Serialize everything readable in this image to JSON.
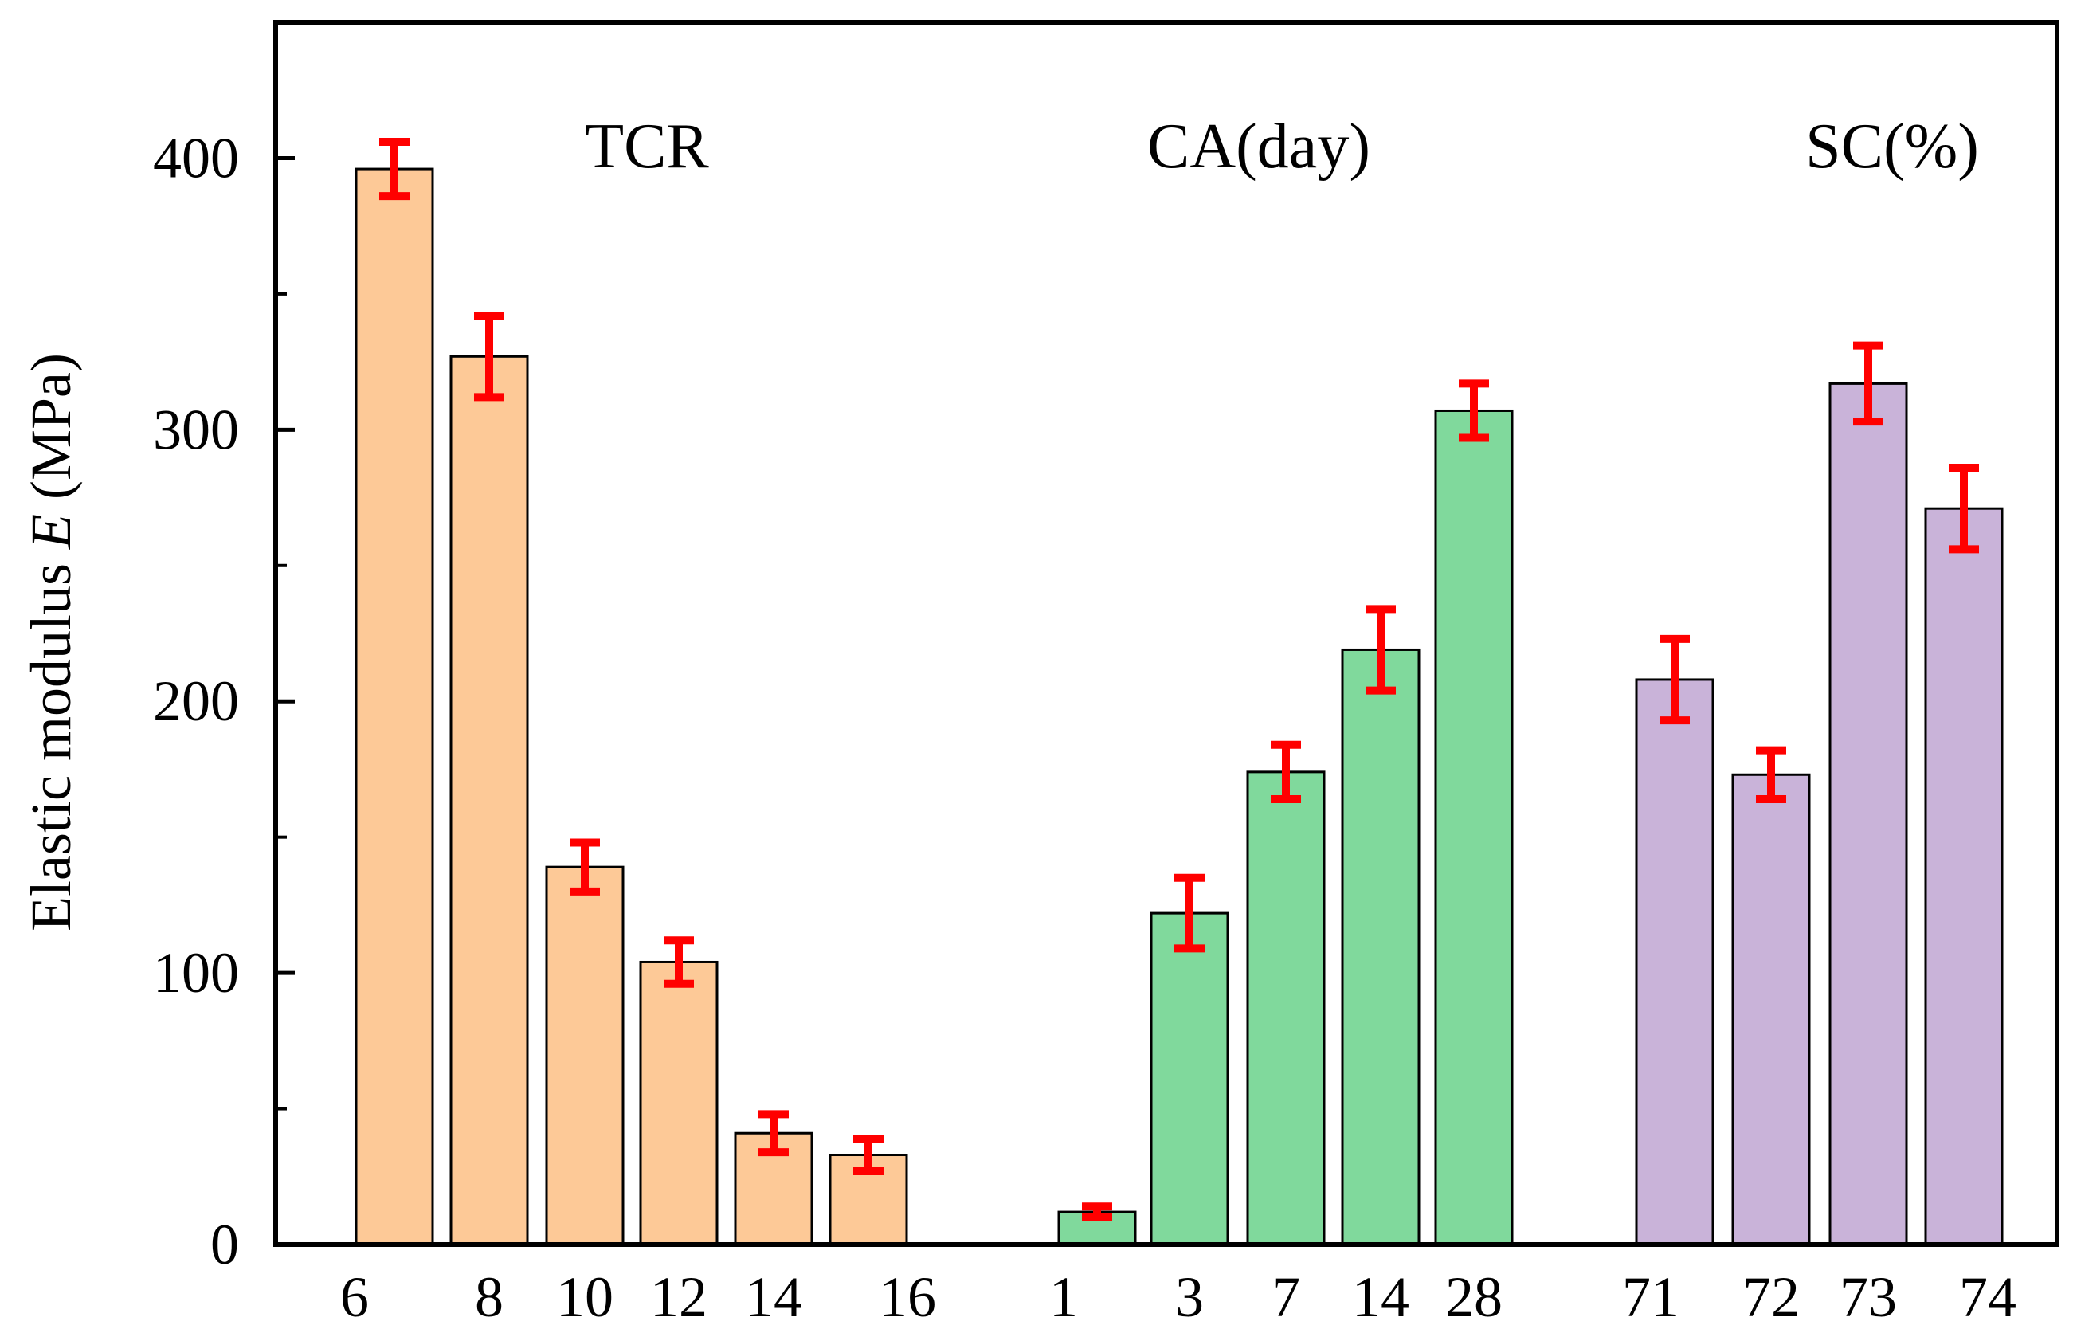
{
  "chart_data": {
    "type": "bar",
    "title": "",
    "xlabel": "",
    "ylabel": "Elastic modulus E (MPa)",
    "ylabel_parts": {
      "prefix": "Elastic modulus ",
      "symbol": "E",
      "suffix": " (MPa)"
    },
    "ylim": [
      0,
      450
    ],
    "yticks": [
      0,
      100,
      200,
      300,
      400
    ],
    "grid": false,
    "groups": [
      {
        "name": "TCR",
        "color": "#fdc997",
        "categories": [
          "6",
          "8",
          "10",
          "12",
          "14",
          "16"
        ],
        "values": [
          396,
          327,
          139,
          104,
          41,
          33
        ],
        "errors": [
          10,
          15,
          9,
          8,
          7,
          6
        ]
      },
      {
        "name": "CA(day)",
        "color": "#80d99c",
        "categories": [
          "1",
          "3",
          "7",
          "14",
          "28"
        ],
        "values": [
          12,
          122,
          174,
          219,
          307
        ],
        "errors": [
          2,
          13,
          10,
          15,
          10
        ]
      },
      {
        "name": "SC(%)",
        "color": "#c9b3d9",
        "categories": [
          "71",
          "72",
          "73",
          "74"
        ],
        "values": [
          208,
          173,
          317,
          271
        ],
        "errors": [
          15,
          9,
          14,
          15
        ]
      }
    ],
    "error_bar_color": "#ff0000",
    "bar_edge_color": "#000000"
  }
}
